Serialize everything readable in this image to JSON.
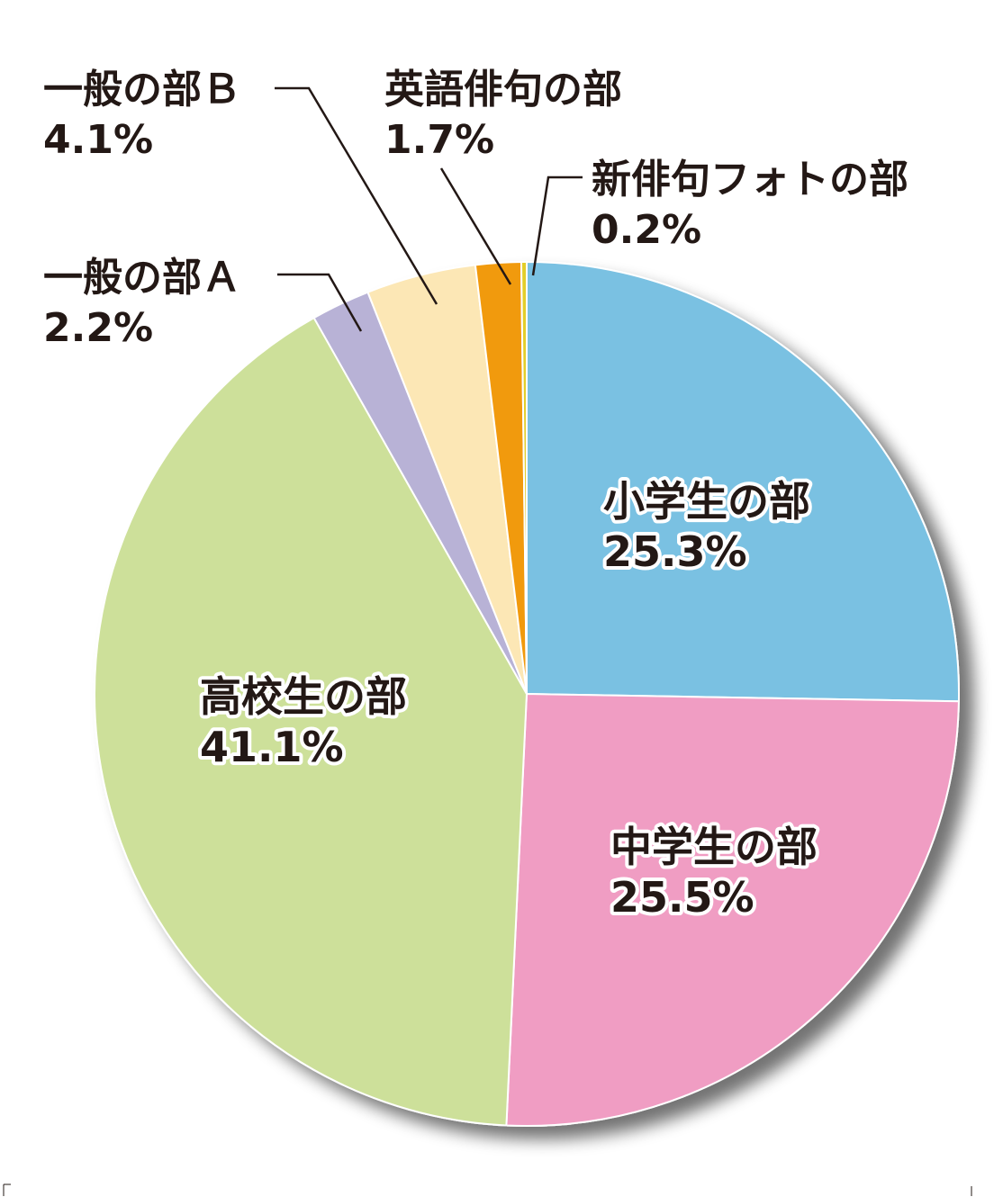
{
  "chart_data": {
    "type": "pie",
    "slices": [
      {
        "name": "小学生の部",
        "pct": "25.3%",
        "value": 25.3,
        "color": "#7ac1e2"
      },
      {
        "name": "中学生の部",
        "pct": "25.5%",
        "value": 25.5,
        "color": "#f09dc3"
      },
      {
        "name": "高校生の部",
        "pct": "41.1%",
        "value": 41.1,
        "color": "#cde09a"
      },
      {
        "name": "一般の部Ａ",
        "pct": "2.2%",
        "value": 2.2,
        "color": "#b8b2d6"
      },
      {
        "name": "一般の部Ｂ",
        "pct": "4.1%",
        "value": 4.1,
        "color": "#fce7b5"
      },
      {
        "name": "英語俳句の部",
        "pct": "1.7%",
        "value": 1.7,
        "color": "#f19a10"
      },
      {
        "name": "新俳句フォトの部",
        "pct": "0.2%",
        "value": 0.2,
        "color": "#e3ce2a"
      }
    ]
  }
}
